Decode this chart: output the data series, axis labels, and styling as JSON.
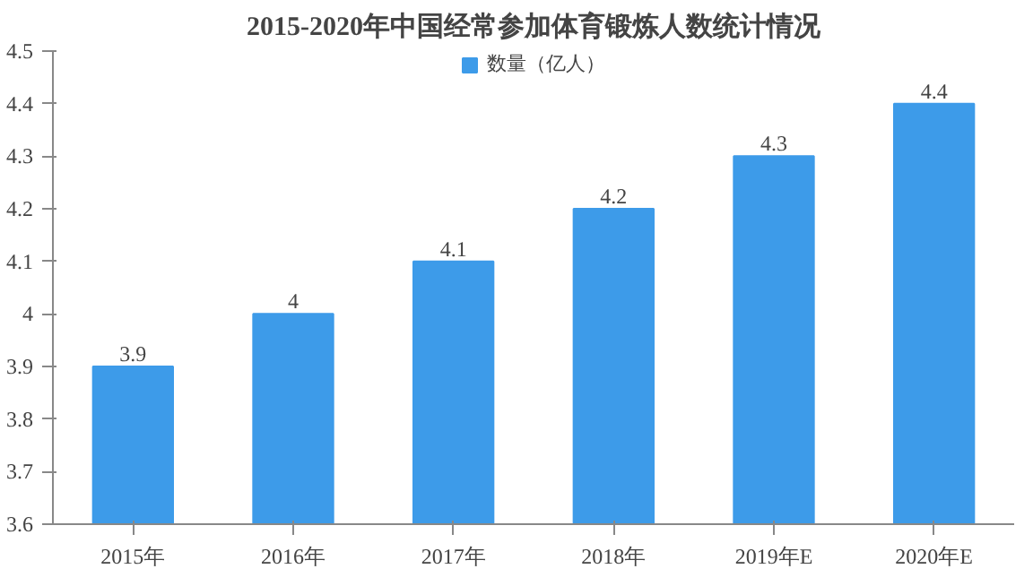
{
  "chart_data": {
    "type": "bar",
    "title": "2015-2020年中国经常参加体育锻炼人数统计情况",
    "categories": [
      "2015年",
      "2016年",
      "2017年",
      "2018年",
      "2019年E",
      "2020年E"
    ],
    "series": [
      {
        "name": "数量（亿人）",
        "color": "#3d9be9",
        "values": [
          3.9,
          4,
          4.1,
          4.2,
          4.3,
          4.4
        ]
      }
    ],
    "ylim": [
      3.6,
      4.5
    ],
    "yticks": [
      3.6,
      3.7,
      3.8,
      3.9,
      4,
      4.1,
      4.2,
      4.3,
      4.4,
      4.5
    ],
    "data_labels": true,
    "legend": "top",
    "grid": false
  }
}
